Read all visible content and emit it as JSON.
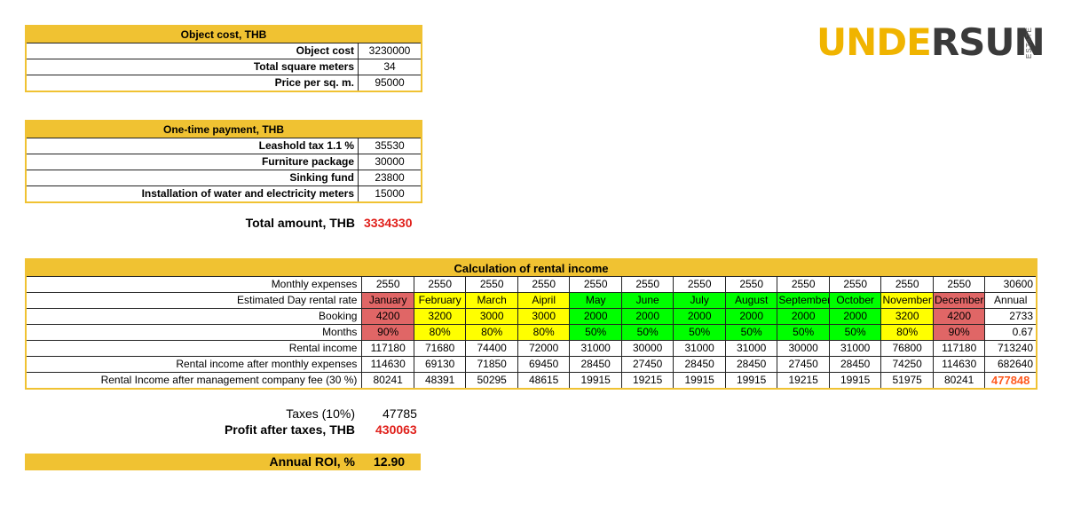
{
  "object_cost": {
    "title": "Object cost, THB",
    "rows": [
      {
        "label": "Object cost",
        "value": "3230000"
      },
      {
        "label": "Total square meters",
        "value": "34"
      },
      {
        "label": "Price per sq. m.",
        "value": "95000"
      }
    ]
  },
  "one_time": {
    "title": "One-time payment, THB",
    "rows": [
      {
        "label": "Leashold tax 1.1 %",
        "value": "35530"
      },
      {
        "label": "Furniture package",
        "value": "30000"
      },
      {
        "label": "Sinking fund",
        "value": "23800"
      },
      {
        "label": "Installation of water and electricity meters",
        "value": "15000"
      }
    ]
  },
  "total": {
    "label": "Total amount, THB",
    "value": "3334330"
  },
  "logo": {
    "part1": "UNDE",
    "part2": "R",
    "part3": "SUN",
    "sub": "ESTATE"
  },
  "rental": {
    "title": "Calculation of rental income",
    "rows": [
      {
        "label": "Monthly expenses",
        "cells": [
          "2550",
          "2550",
          "2550",
          "2550",
          "2550",
          "2550",
          "2550",
          "2550",
          "2550",
          "2550",
          "2550",
          "2550",
          "30600"
        ]
      },
      {
        "label": "Estimated Day rental rate",
        "cells": [
          "January",
          "February",
          "March",
          "Aipril",
          "May",
          "June",
          "July",
          "August",
          "September",
          "October",
          "November",
          "December",
          "Annual"
        ]
      },
      {
        "label": "Booking",
        "cells": [
          "4200",
          "3200",
          "3000",
          "3000",
          "2000",
          "2000",
          "2000",
          "2000",
          "2000",
          "2000",
          "3200",
          "4200",
          "2733"
        ]
      },
      {
        "label": "Months",
        "cells": [
          "90%",
          "80%",
          "80%",
          "80%",
          "50%",
          "50%",
          "50%",
          "50%",
          "50%",
          "50%",
          "80%",
          "90%",
          "0.67"
        ]
      },
      {
        "label": "Rental income",
        "cells": [
          "117180",
          "71680",
          "74400",
          "72000",
          "31000",
          "30000",
          "31000",
          "31000",
          "30000",
          "31000",
          "76800",
          "117180",
          "713240"
        ]
      },
      {
        "label": "Rental income after monthly expenses",
        "cells": [
          "114630",
          "69130",
          "71850",
          "69450",
          "28450",
          "27450",
          "28450",
          "28450",
          "27450",
          "28450",
          "74250",
          "114630",
          "682640"
        ]
      },
      {
        "label": "Rental Income after management company fee (30 %)",
        "cells": [
          "80241",
          "48391",
          "50295",
          "48615",
          "19915",
          "19215",
          "19915",
          "19915",
          "19215",
          "19915",
          "51975",
          "80241",
          "477848"
        ]
      }
    ],
    "season_colors": {
      "high": "#e06666",
      "mid": "#ffff00",
      "low": "#00ff00"
    },
    "month_season": [
      "high",
      "mid",
      "mid",
      "mid",
      "low",
      "low",
      "low",
      "low",
      "low",
      "low",
      "mid",
      "high"
    ]
  },
  "taxes": {
    "label": "Taxes (10%)",
    "value": "47785"
  },
  "profit": {
    "label": "Profit after taxes, THB",
    "value": "430063"
  },
  "roi": {
    "label": "Annual ROI, %",
    "value": "12.90"
  }
}
